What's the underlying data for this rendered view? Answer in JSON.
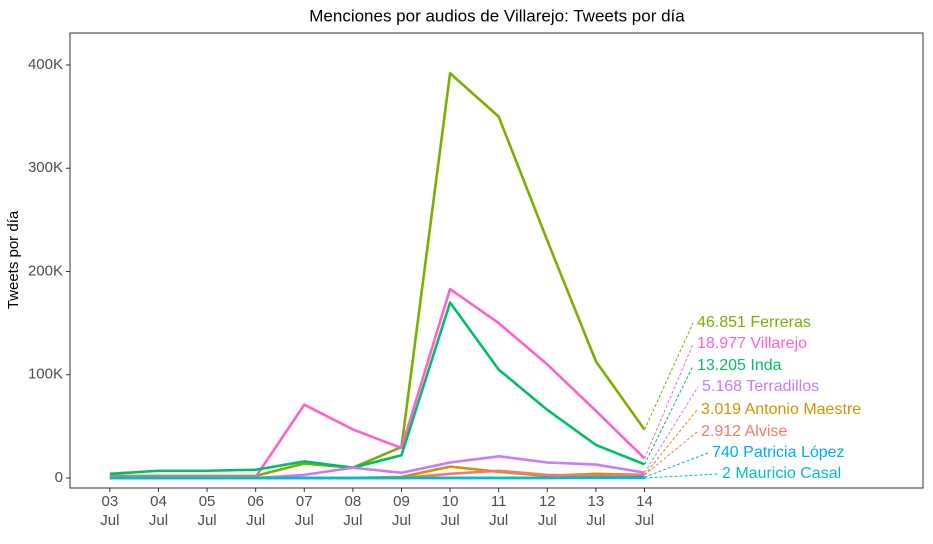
{
  "chart_data": {
    "type": "line",
    "title": "Menciones por audios de Villarejo: Tweets por día",
    "y_label": "Tweets por día",
    "x": [
      3,
      4,
      5,
      6,
      7,
      8,
      9,
      10,
      11,
      12,
      13,
      14
    ],
    "xlim": [
      2.18,
      19.73
    ],
    "xticks": [
      {
        "value": 3,
        "label": "03 Jul"
      },
      {
        "value": 4,
        "label": "04 Jul"
      },
      {
        "value": 5,
        "label": "05 Jul"
      },
      {
        "value": 6,
        "label": "06 Jul"
      },
      {
        "value": 7,
        "label": "07 Jul"
      },
      {
        "value": 8,
        "label": "08 Jul"
      },
      {
        "value": 9,
        "label": "09 Jul"
      },
      {
        "value": 10,
        "label": "10 Jul"
      },
      {
        "value": 11,
        "label": "11 Jul"
      },
      {
        "value": 12,
        "label": "12 Jul"
      },
      {
        "value": 13,
        "label": "13 Jul"
      },
      {
        "value": 14,
        "label": "14 Jul"
      }
    ],
    "ylim": [
      -9700,
      431000
    ],
    "yticks": [
      0,
      {
        "value": 100000,
        "label": "100K"
      },
      {
        "value": 200000,
        "label": "200K"
      },
      {
        "value": 300000,
        "label": "300K"
      },
      {
        "value": 400000,
        "label": "400K"
      }
    ],
    "grid": false,
    "series": [
      {
        "label": "46.851 Ferreras",
        "color": "#7CAE00",
        "values": [
          2000,
          2000,
          2000,
          2000,
          14000,
          10000,
          30000,
          392000,
          350000,
          230000,
          113000,
          46851
        ]
      },
      {
        "label": "18.977 Villarejo",
        "color": "#FF61CC",
        "values": [
          1000,
          1000,
          1000,
          1000,
          71000,
          47000,
          29000,
          183000,
          150000,
          110000,
          65000,
          18977
        ]
      },
      {
        "label": "13.205 Inda",
        "color": "#00BE67",
        "values": [
          4000,
          7000,
          7000,
          8000,
          16000,
          10000,
          22000,
          170000,
          105000,
          66000,
          32000,
          13205
        ]
      },
      {
        "label": "5.168 Terradillos",
        "color": "#C77CFF",
        "values": [
          0,
          0,
          0,
          0,
          3000,
          10000,
          5000,
          15000,
          21000,
          15000,
          13000,
          5168
        ]
      },
      {
        "label": "3.019 Antonio Maestre",
        "color": "#CD9600",
        "values": [
          0,
          0,
          0,
          0,
          0,
          0,
          1000,
          11000,
          6000,
          2000,
          4000,
          3019
        ]
      },
      {
        "label": "2.912 Alvise",
        "color": "#F8766D",
        "values": [
          0,
          0,
          0,
          0,
          0,
          0,
          0,
          4000,
          7000,
          3000,
          2000,
          2912
        ]
      },
      {
        "label": "740 Patricia López",
        "color": "#00A9FF",
        "values": [
          0,
          0,
          0,
          0,
          0,
          0,
          0,
          0,
          0,
          0,
          500,
          740
        ]
      },
      {
        "label": "2 Mauricio Casal",
        "color": "#00BFC4",
        "values": [
          0,
          0,
          0,
          0,
          0,
          0,
          0,
          0,
          0,
          0,
          0,
          2
        ]
      }
    ]
  }
}
